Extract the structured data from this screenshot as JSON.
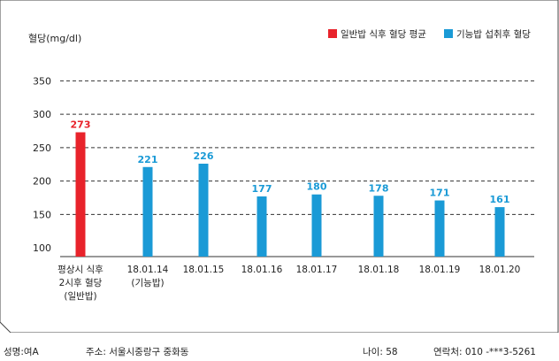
{
  "chart_data": {
    "type": "bar",
    "ylabel": "혈당(mg/dl)",
    "yticks": [
      100,
      150,
      200,
      250,
      300,
      350
    ],
    "ylim": [
      87,
      365
    ],
    "grid": "dashed horizontal",
    "legend_placement": "top-right",
    "legend": [
      {
        "label": "일반밥 식후 혈당 평균",
        "color": "#e8232b"
      },
      {
        "label": "기능밥 섭취후 혈당",
        "color": "#1a9ad6"
      }
    ],
    "categories": [
      {
        "lines": [
          "평상시 식후",
          "2시후 혈당",
          "(일반밥)"
        ]
      },
      {
        "lines": [
          "18.01.14",
          "(기능밥)"
        ]
      },
      {
        "lines": [
          "18.01.15"
        ]
      },
      {
        "lines": [
          "18.01.16"
        ]
      },
      {
        "lines": [
          "18.01.17"
        ]
      },
      {
        "lines": [
          "18.01.18"
        ]
      },
      {
        "lines": [
          "18.01.19"
        ]
      },
      {
        "lines": [
          "18.01.20"
        ]
      }
    ],
    "values": [
      273,
      221,
      226,
      177,
      180,
      178,
      171,
      161
    ],
    "series_index": [
      0,
      1,
      1,
      1,
      1,
      1,
      1,
      1
    ],
    "colors": {
      "series0": "#e8232b",
      "series1": "#1a9ad6",
      "label0": "#e8232b",
      "label1": "#1a9ad6"
    }
  },
  "info": {
    "name": "성명:여A",
    "address": "주소: 서울시중랑구 중화동",
    "age": "나이: 58",
    "contact": "연락처: 010 -***3-5261"
  }
}
